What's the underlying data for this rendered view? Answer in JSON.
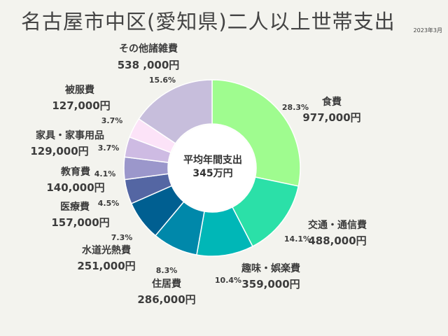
{
  "chart_data": {
    "type": "pie",
    "variant": "donut",
    "title": "名古屋市中区(愛知県)二人以上世帯支出",
    "date": "2023年3月",
    "center": {
      "line1": "平均年間支出",
      "line2": "345万円"
    },
    "slices": [
      {
        "name": "食費",
        "amount": "977,000円",
        "percent": "28.3%",
        "value": 28.3,
        "color": "#9ffc8f"
      },
      {
        "name": "交通・通信費",
        "amount": "488,000円",
        "percent": "14.1%",
        "value": 14.1,
        "color": "#2be0a8"
      },
      {
        "name": "趣味・娯楽費",
        "amount": "359,000円",
        "percent": "10.4%",
        "value": 10.4,
        "color": "#00b7b7"
      },
      {
        "name": "住居費",
        "amount": "286,000円",
        "percent": "8.3%",
        "value": 8.3,
        "color": "#0088aa"
      },
      {
        "name": "水道光熱費",
        "amount": "251,000円",
        "percent": "7.3%",
        "value": 7.3,
        "color": "#005f91"
      },
      {
        "name": "医療費",
        "amount": "157,000円",
        "percent": "4.5%",
        "value": 4.5,
        "color": "#5466a3"
      },
      {
        "name": "教育費",
        "amount": "140,000円",
        "percent": "4.1%",
        "value": 4.1,
        "color": "#9b97cb"
      },
      {
        "name": "家具・家事用品",
        "amount": "129,000円",
        "percent": "3.7%",
        "value": 3.7,
        "color": "#cebbe3"
      },
      {
        "name": "被服費",
        "amount": "127,000円",
        "percent": "3.7%",
        "value": 3.7,
        "color": "#fce3f8"
      },
      {
        "name": "その他諸雑費",
        "amount": "538 ,000円",
        "percent": "15.6%",
        "value": 15.6,
        "color": "#c7bedc"
      }
    ]
  }
}
